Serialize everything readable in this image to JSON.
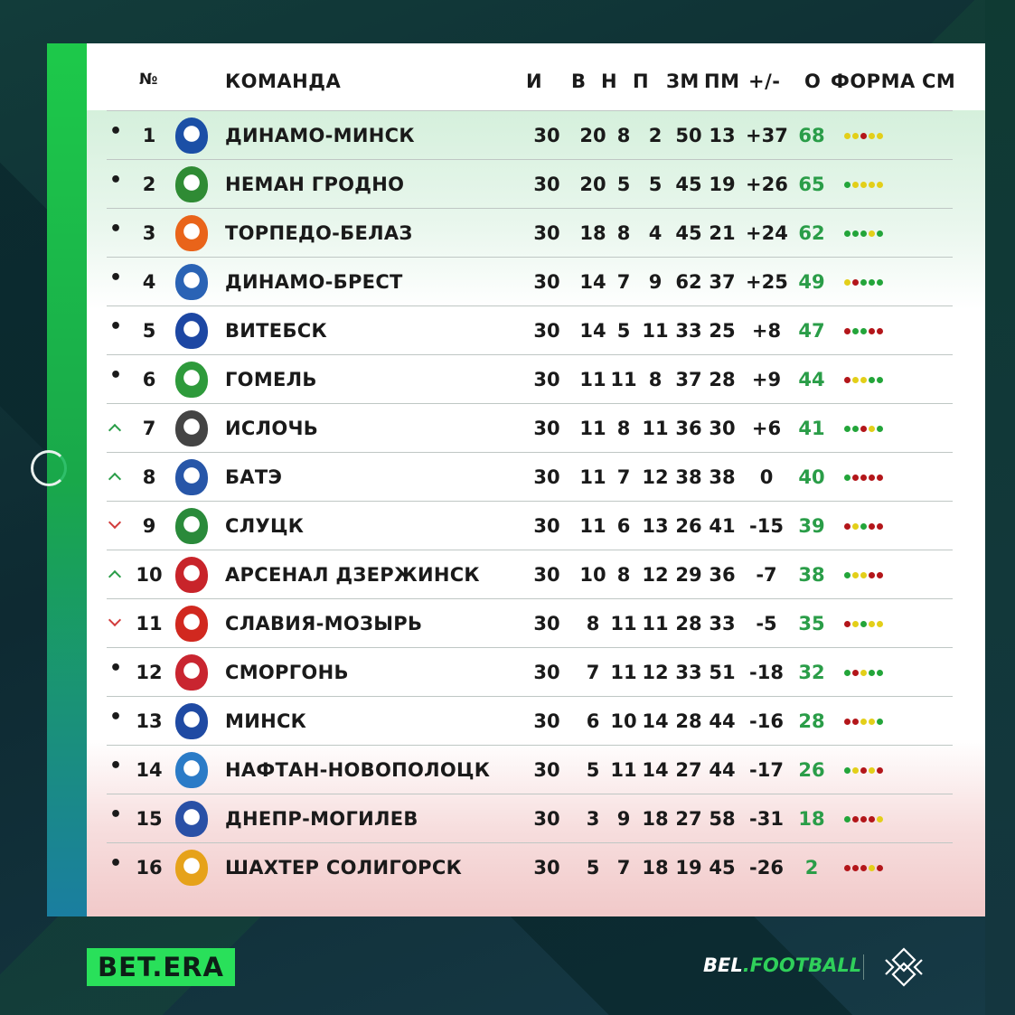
{
  "header": {
    "num": "№",
    "team": "КОМАНДА",
    "games": "И",
    "wins": "В",
    "draws": "Н",
    "losses": "П",
    "goals_for": "ЗМ",
    "goals_against": "ПМ",
    "diff": "+/-",
    "points": "О",
    "form": "ФОРМА",
    "change": "СМ"
  },
  "colors": {
    "win": "#23a53a",
    "draw": "#e3cf19",
    "loss": "#b3161a",
    "accent": "#2a9d48",
    "brand": "#29e05a"
  },
  "rows": [
    {
      "trend": "•",
      "pos": "1",
      "name": "ДИНАМО-МИНСК",
      "g": "30",
      "w": "20",
      "d": "8",
      "l": "2",
      "gf": "50",
      "ga": "13",
      "diff": "+37",
      "pts": "68",
      "logo": "#1b4fa6",
      "form": [
        "D",
        "D",
        "L",
        "D",
        "D"
      ]
    },
    {
      "trend": "•",
      "pos": "2",
      "name": "НЕМАН ГРОДНО",
      "g": "30",
      "w": "20",
      "d": "5",
      "l": "5",
      "gf": "45",
      "ga": "19",
      "diff": "+26",
      "pts": "65",
      "logo": "#2f8b34",
      "form": [
        "W",
        "D",
        "D",
        "D",
        "D"
      ]
    },
    {
      "trend": "•",
      "pos": "3",
      "name": "ТОРПЕДО-БЕЛАЗ",
      "g": "30",
      "w": "18",
      "d": "8",
      "l": "4",
      "gf": "45",
      "ga": "21",
      "diff": "+24",
      "pts": "62",
      "logo": "#e9641a",
      "form": [
        "W",
        "W",
        "W",
        "D",
        "W"
      ]
    },
    {
      "trend": "•",
      "pos": "4",
      "name": "ДИНАМО-БРЕСТ",
      "g": "30",
      "w": "14",
      "d": "7",
      "l": "9",
      "gf": "62",
      "ga": "37",
      "diff": "+25",
      "pts": "49",
      "logo": "#2a63b5",
      "form": [
        "D",
        "L",
        "W",
        "W",
        "W"
      ]
    },
    {
      "trend": "•",
      "pos": "5",
      "name": "ВИТЕБСК",
      "g": "30",
      "w": "14",
      "d": "5",
      "l": "11",
      "gf": "33",
      "ga": "25",
      "diff": "+8",
      "pts": "47",
      "logo": "#1d47a3",
      "form": [
        "L",
        "W",
        "W",
        "L",
        "L"
      ]
    },
    {
      "trend": "•",
      "pos": "6",
      "name": "ГОМЕЛЬ",
      "g": "30",
      "w": "11",
      "d": "11",
      "l": "8",
      "gf": "37",
      "ga": "28",
      "diff": "+9",
      "pts": "44",
      "logo": "#2e9a3b",
      "form": [
        "L",
        "D",
        "D",
        "W",
        "W"
      ]
    },
    {
      "trend": "up",
      "pos": "7",
      "name": "ИСЛОЧЬ",
      "g": "30",
      "w": "11",
      "d": "8",
      "l": "11",
      "gf": "36",
      "ga": "30",
      "diff": "+6",
      "pts": "41",
      "logo": "#444444",
      "form": [
        "W",
        "W",
        "L",
        "D",
        "W"
      ]
    },
    {
      "trend": "up",
      "pos": "8",
      "name": "БАТЭ",
      "g": "30",
      "w": "11",
      "d": "7",
      "l": "12",
      "gf": "38",
      "ga": "38",
      "diff": "0",
      "pts": "40",
      "logo": "#2756a8",
      "form": [
        "W",
        "L",
        "L",
        "L",
        "L"
      ]
    },
    {
      "trend": "down",
      "pos": "9",
      "name": "СЛУЦК",
      "g": "30",
      "w": "11",
      "d": "6",
      "l": "13",
      "gf": "26",
      "ga": "41",
      "diff": "-15",
      "pts": "39",
      "logo": "#2a8a3a",
      "form": [
        "L",
        "D",
        "W",
        "L",
        "L"
      ]
    },
    {
      "trend": "up",
      "pos": "10",
      "name": "АРСЕНАЛ ДЗЕРЖИНСК",
      "g": "30",
      "w": "10",
      "d": "8",
      "l": "12",
      "gf": "29",
      "ga": "36",
      "diff": "-7",
      "pts": "38",
      "logo": "#c8242a",
      "form": [
        "W",
        "D",
        "D",
        "L",
        "L"
      ]
    },
    {
      "trend": "down",
      "pos": "11",
      "name": "СЛАВИЯ-МОЗЫРЬ",
      "g": "30",
      "w": "8",
      "d": "11",
      "l": "11",
      "gf": "28",
      "ga": "33",
      "diff": "-5",
      "pts": "35",
      "logo": "#d1281f",
      "form": [
        "L",
        "D",
        "W",
        "D",
        "D"
      ]
    },
    {
      "trend": "•",
      "pos": "12",
      "name": "СМОРГОНЬ",
      "g": "30",
      "w": "7",
      "d": "11",
      "l": "12",
      "gf": "33",
      "ga": "51",
      "diff": "-18",
      "pts": "32",
      "logo": "#c92530",
      "form": [
        "W",
        "L",
        "D",
        "W",
        "W"
      ]
    },
    {
      "trend": "•",
      "pos": "13",
      "name": "МИНСК",
      "g": "30",
      "w": "6",
      "d": "10",
      "l": "14",
      "gf": "28",
      "ga": "44",
      "diff": "-16",
      "pts": "28",
      "logo": "#1f4aa3",
      "form": [
        "L",
        "L",
        "D",
        "D",
        "W"
      ]
    },
    {
      "trend": "•",
      "pos": "14",
      "name": "НАФТАН-НОВОПОЛОЦК",
      "g": "30",
      "w": "5",
      "d": "11",
      "l": "14",
      "gf": "27",
      "ga": "44",
      "diff": "-17",
      "pts": "26",
      "logo": "#2b7bc7",
      "form": [
        "W",
        "D",
        "L",
        "D",
        "L"
      ]
    },
    {
      "trend": "•",
      "pos": "15",
      "name": "ДНЕПР-МОГИЛЕВ",
      "g": "30",
      "w": "3",
      "d": "9",
      "l": "18",
      "gf": "27",
      "ga": "58",
      "diff": "-31",
      "pts": "18",
      "logo": "#2950a6",
      "form": [
        "W",
        "L",
        "L",
        "L",
        "D"
      ]
    },
    {
      "trend": "•",
      "pos": "16",
      "name": "ШАХТЕР СОЛИГОРСК",
      "g": "30",
      "w": "5",
      "d": "7",
      "l": "18",
      "gf": "19",
      "ga": "45",
      "diff": "-26",
      "pts": "2",
      "logo": "#e6a21a",
      "form": [
        "L",
        "L",
        "L",
        "D",
        "L"
      ]
    }
  ],
  "footer": {
    "sponsor": "BET.ERA",
    "site_prefix": "BEL",
    "site_suffix": ".FOOTBALL"
  }
}
